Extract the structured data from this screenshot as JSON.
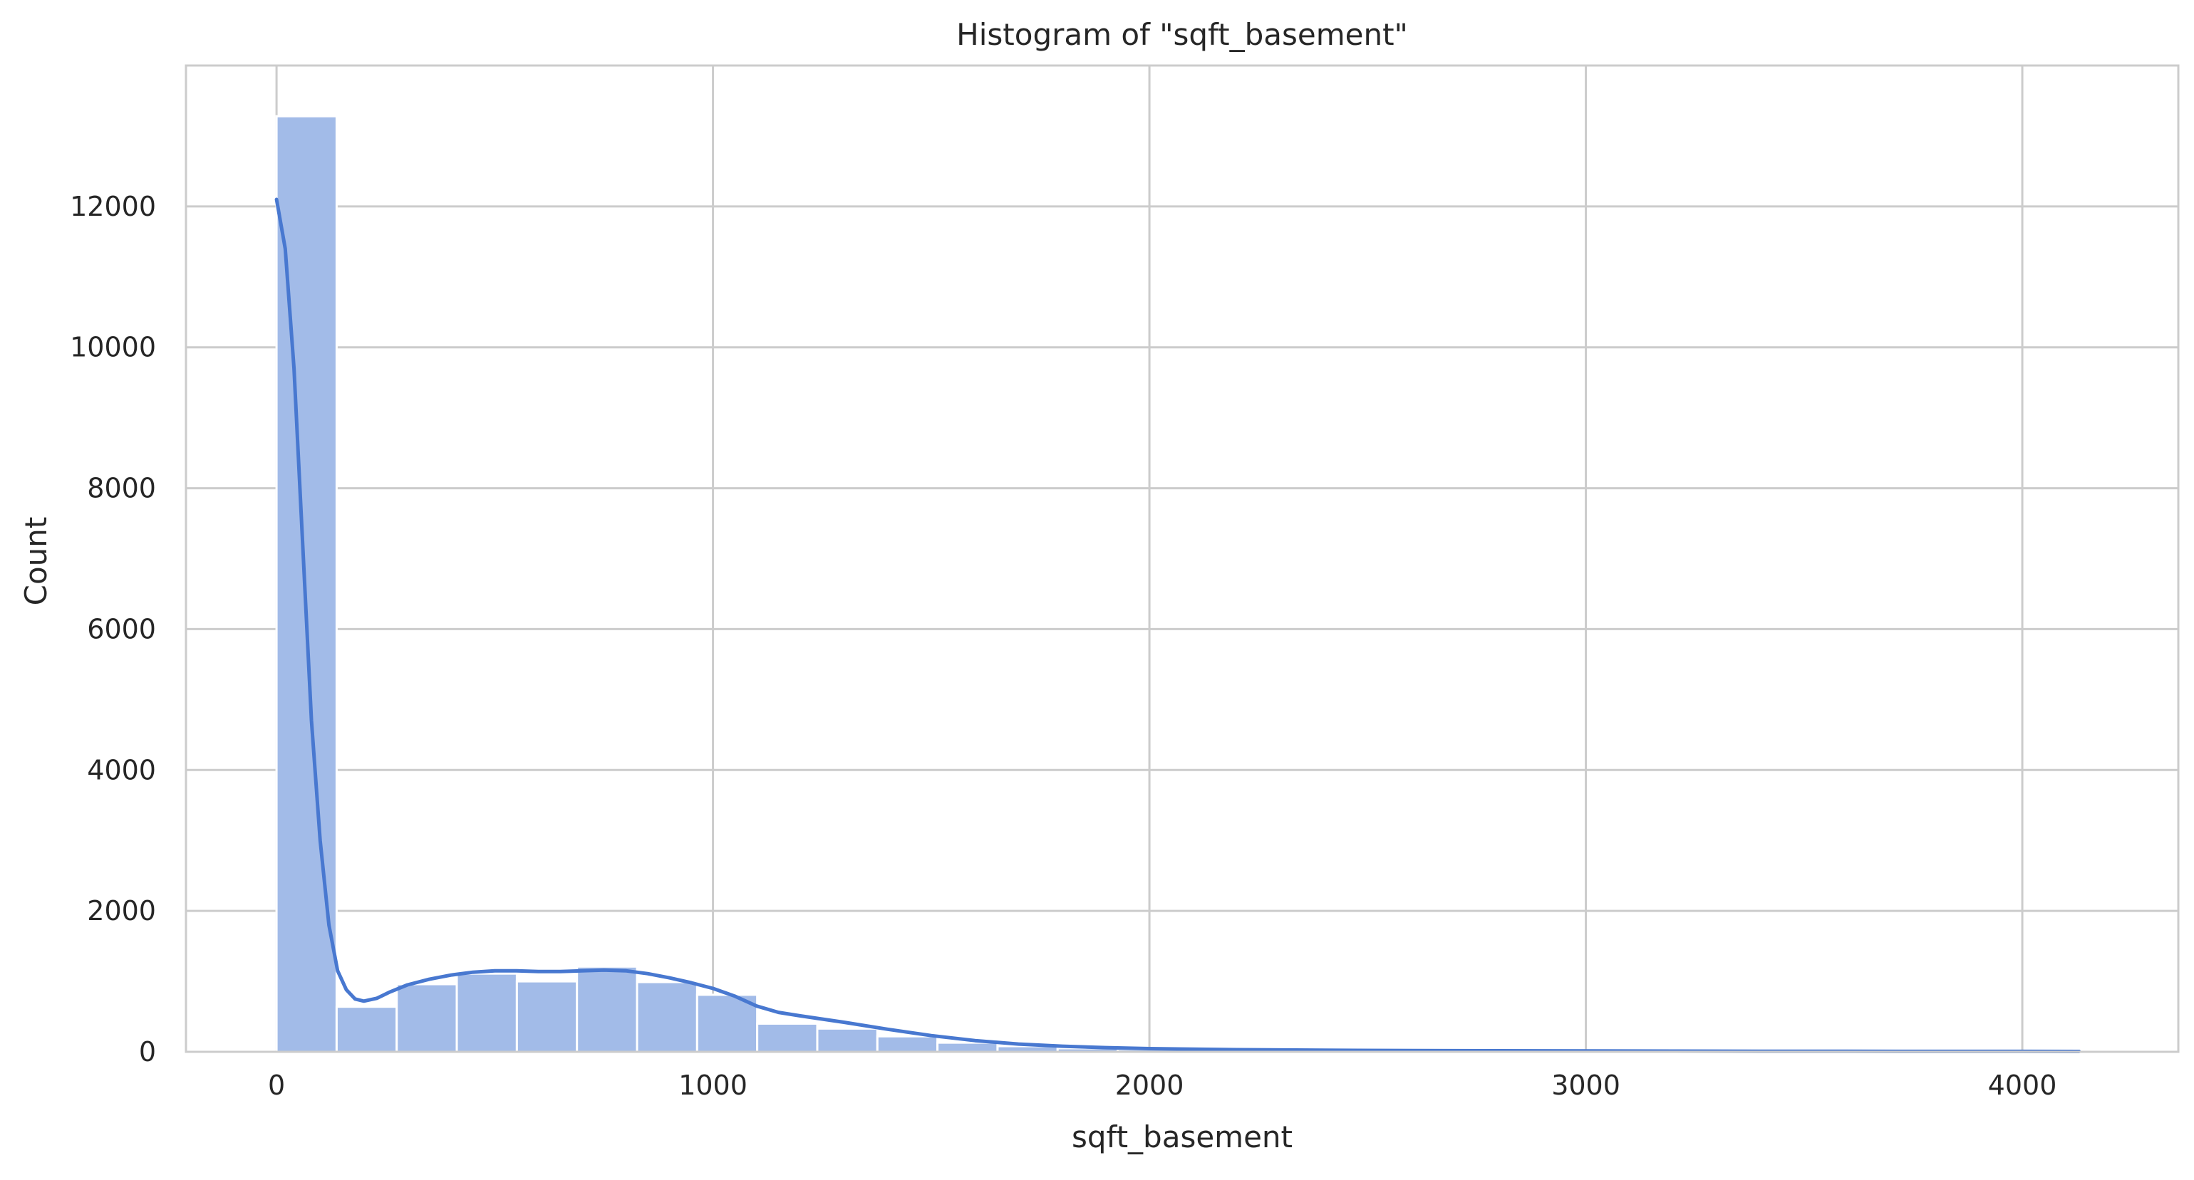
{
  "chart_data": {
    "type": "bar",
    "title": "Histogram of \"sqft_basement\"",
    "xlabel": "sqft_basement",
    "ylabel": "Count",
    "xlim": [
      -207.5,
      4357.5
    ],
    "ylim": [
      0,
      14000
    ],
    "xticks": [
      0,
      1000,
      2000,
      3000,
      4000
    ],
    "xtick_labels": [
      "0",
      "1000",
      "2000",
      "3000",
      "4000"
    ],
    "yticks": [
      0,
      2000,
      4000,
      6000,
      8000,
      10000,
      12000
    ],
    "ytick_labels": [
      "0",
      "2000",
      "4000",
      "6000",
      "8000",
      "10000",
      "12000"
    ],
    "grid": true,
    "bin_width": 137.67,
    "bin_edges_start": 0,
    "bins": [
      {
        "x0": 0,
        "x1": 137.67,
        "count": 13280
      },
      {
        "x0": 137.67,
        "x1": 275.33,
        "count": 640
      },
      {
        "x0": 275.33,
        "x1": 413,
        "count": 960
      },
      {
        "x0": 413,
        "x1": 550.67,
        "count": 1110
      },
      {
        "x0": 550.67,
        "x1": 688.33,
        "count": 1000
      },
      {
        "x0": 688.33,
        "x1": 826,
        "count": 1210
      },
      {
        "x0": 826,
        "x1": 963.67,
        "count": 990
      },
      {
        "x0": 963.67,
        "x1": 1101.33,
        "count": 810
      },
      {
        "x0": 1101.33,
        "x1": 1239,
        "count": 400
      },
      {
        "x0": 1239,
        "x1": 1376.67,
        "count": 330
      },
      {
        "x0": 1376.67,
        "x1": 1514.33,
        "count": 220
      },
      {
        "x0": 1514.33,
        "x1": 1652,
        "count": 130
      },
      {
        "x0": 1652,
        "x1": 1789.67,
        "count": 80
      },
      {
        "x0": 1789.67,
        "x1": 1927.33,
        "count": 50
      },
      {
        "x0": 1927.33,
        "x1": 2065,
        "count": 35
      },
      {
        "x0": 2065,
        "x1": 2202.67,
        "count": 25
      },
      {
        "x0": 2202.67,
        "x1": 2340.33,
        "count": 15
      },
      {
        "x0": 2340.33,
        "x1": 2478,
        "count": 10
      },
      {
        "x0": 2478,
        "x1": 2615.67,
        "count": 8
      },
      {
        "x0": 2615.67,
        "x1": 2753.33,
        "count": 8
      },
      {
        "x0": 2753.33,
        "x1": 2891,
        "count": 5
      },
      {
        "x0": 2891,
        "x1": 3028.67,
        "count": 4
      },
      {
        "x0": 3028.67,
        "x1": 3166.33,
        "count": 3
      },
      {
        "x0": 3166.33,
        "x1": 3304,
        "count": 2
      },
      {
        "x0": 3304,
        "x1": 3441.67,
        "count": 2
      },
      {
        "x0": 3441.67,
        "x1": 3579.33,
        "count": 2
      },
      {
        "x0": 3579.33,
        "x1": 3717,
        "count": 1
      },
      {
        "x0": 3717,
        "x1": 3854.67,
        "count": 1
      },
      {
        "x0": 3854.67,
        "x1": 3992.33,
        "count": 1
      },
      {
        "x0": 3992.33,
        "x1": 4130,
        "count": 1
      }
    ],
    "kde": {
      "x": [
        0,
        20,
        40,
        60,
        80,
        100,
        120,
        140,
        160,
        180,
        200,
        230,
        260,
        300,
        350,
        400,
        450,
        500,
        550,
        600,
        650,
        700,
        750,
        800,
        850,
        900,
        950,
        1000,
        1050,
        1100,
        1150,
        1200,
        1300,
        1400,
        1500,
        1600,
        1700,
        1800,
        1900,
        2000,
        2200,
        2400,
        2600,
        2800,
        3000,
        3200,
        3400,
        3600,
        3800,
        4000,
        4130
      ],
      "y": [
        12100,
        11400,
        9700,
        7200,
        4700,
        3000,
        1800,
        1150,
        880,
        750,
        720,
        760,
        850,
        950,
        1030,
        1090,
        1130,
        1150,
        1150,
        1140,
        1140,
        1150,
        1160,
        1150,
        1110,
        1050,
        980,
        900,
        790,
        650,
        560,
        510,
        420,
        320,
        230,
        160,
        110,
        80,
        60,
        45,
        30,
        22,
        18,
        15,
        12,
        10,
        8,
        7,
        6,
        6,
        5
      ]
    },
    "colors": {
      "bar_fill": "#a2bbe8",
      "bar_edge": "#ffffff",
      "kde_line": "#4878d0",
      "grid": "#cccccc",
      "axes_edge": "#cccccc",
      "text": "#262626"
    }
  }
}
